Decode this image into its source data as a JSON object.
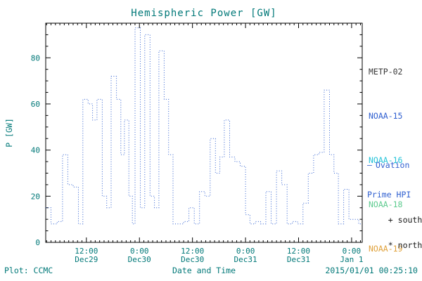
{
  "title": "Hemispheric Power [GW]",
  "footer": {
    "plot_source": "Plot: CCMC",
    "xaxis_caption": "Date and Time",
    "timestamp": "2015/01/01 00:25:10"
  },
  "legend": {
    "satellites": [
      {
        "label": "METP-02",
        "color": "#3a3a3a"
      },
      {
        "label": "NOAA-15",
        "color": "#2f5fd0"
      },
      {
        "label": "NOAA-16",
        "color": "#25c3d8"
      },
      {
        "label": "NOAA-18",
        "color": "#5ecb8f"
      },
      {
        "label": "NOAA-19",
        "color": "#e0a23c"
      }
    ],
    "line_label": {
      "prefix": "–",
      "line1": "Ovation",
      "line2": "Prime HPI",
      "color": "#2f5fd0"
    },
    "markers": [
      {
        "symbol": "+",
        "label": "south",
        "color": "#1a1a1a"
      },
      {
        "symbol": "*",
        "label": "north",
        "color": "#1a1a1a"
      }
    ]
  },
  "chart_data": {
    "type": "line",
    "style": "dotted-step",
    "title": "Hemispheric Power [GW]",
    "xlabel": "Date and Time",
    "ylabel": "P [GW]",
    "ylim": [
      0,
      95
    ],
    "xlim": [
      2.8,
      74.4
    ],
    "x_unit": "hours since 2014-12-29 00:00",
    "grid": false,
    "legend_position": "right",
    "x_ticks": [
      {
        "t": 12,
        "time": "12:00",
        "date": "Dec29"
      },
      {
        "t": 24,
        "time": "0:00",
        "date": "Dec30"
      },
      {
        "t": 36,
        "time": "12:00",
        "date": "Dec30"
      },
      {
        "t": 48,
        "time": "0:00",
        "date": "Dec31"
      },
      {
        "t": 60,
        "time": "12:00",
        "date": "Dec31"
      },
      {
        "t": 72,
        "time": "0:00",
        "date": "Jan 1"
      }
    ],
    "y_ticks": [
      0,
      20,
      40,
      60,
      80
    ],
    "axis_color": "#000000",
    "tick_label_color": "#007878",
    "series": [
      {
        "name": "Ovation Prime HPI",
        "color": "#2f5fd0",
        "steps": [
          [
            2.8,
            15
          ],
          [
            4.0,
            8
          ],
          [
            5.4,
            9
          ],
          [
            6.6,
            38
          ],
          [
            7.8,
            25
          ],
          [
            9.0,
            24
          ],
          [
            10.2,
            8
          ],
          [
            11.2,
            62
          ],
          [
            12.4,
            60
          ],
          [
            13.4,
            53
          ],
          [
            14.4,
            62
          ],
          [
            15.6,
            20
          ],
          [
            16.6,
            15
          ],
          [
            17.6,
            72
          ],
          [
            18.8,
            62
          ],
          [
            19.8,
            38
          ],
          [
            20.6,
            53
          ],
          [
            21.6,
            20
          ],
          [
            22.4,
            8
          ],
          [
            23.0,
            93
          ],
          [
            24.2,
            15
          ],
          [
            25.2,
            90
          ],
          [
            26.4,
            20
          ],
          [
            27.4,
            15
          ],
          [
            28.4,
            83
          ],
          [
            29.6,
            62
          ],
          [
            30.6,
            38
          ],
          [
            31.6,
            8
          ],
          [
            32.8,
            8
          ],
          [
            34.0,
            9
          ],
          [
            35.2,
            15
          ],
          [
            36.4,
            8
          ],
          [
            37.6,
            22
          ],
          [
            38.8,
            20
          ],
          [
            40.0,
            45
          ],
          [
            41.2,
            30
          ],
          [
            42.2,
            37
          ],
          [
            43.2,
            53
          ],
          [
            44.4,
            37
          ],
          [
            45.6,
            35
          ],
          [
            46.8,
            33
          ],
          [
            48.0,
            12
          ],
          [
            49.0,
            8
          ],
          [
            50.2,
            9
          ],
          [
            51.4,
            8
          ],
          [
            52.6,
            22
          ],
          [
            53.8,
            8
          ],
          [
            55.0,
            31
          ],
          [
            56.2,
            25
          ],
          [
            57.4,
            8
          ],
          [
            58.6,
            9
          ],
          [
            59.8,
            8
          ],
          [
            61.0,
            17
          ],
          [
            62.2,
            30
          ],
          [
            63.4,
            38
          ],
          [
            64.6,
            39
          ],
          [
            65.8,
            66
          ],
          [
            67.0,
            38
          ],
          [
            68.0,
            30
          ],
          [
            69.0,
            8
          ],
          [
            70.2,
            23
          ],
          [
            71.4,
            10
          ],
          [
            72.6,
            10
          ],
          [
            73.6,
            8
          ]
        ]
      }
    ]
  }
}
